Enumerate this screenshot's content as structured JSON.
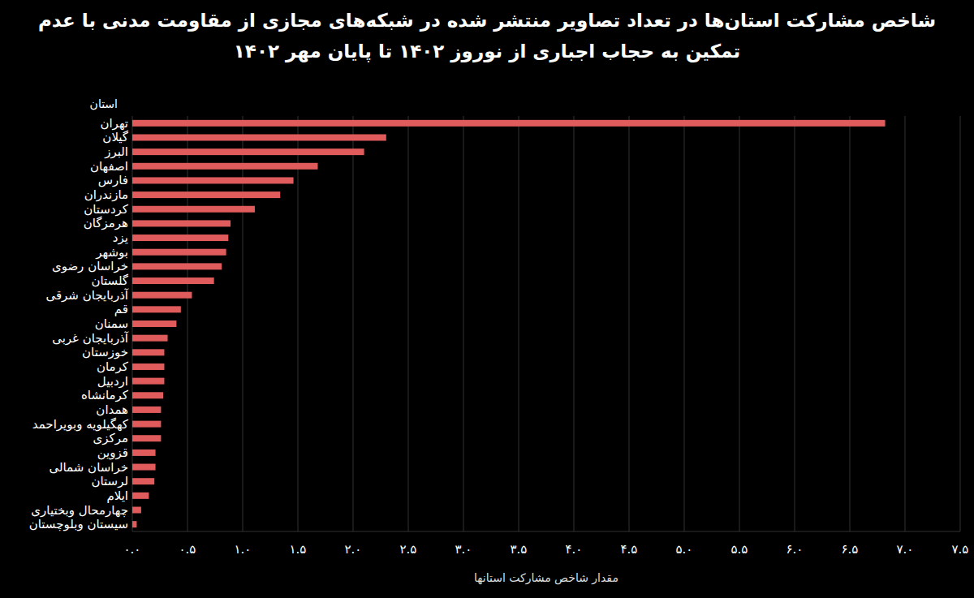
{
  "chart_data": {
    "type": "bar",
    "orientation": "horizontal",
    "title": "شاخص مشارکت استان‌ها در تعداد تصاویر منتشر شده در شبکه‌های مجازی از مقاومت مدنی با عدم تمکین به حجاب اجباری از نوروز ۱۴۰۲ تا پایان مهر ۱۴۰۲",
    "x_label": "مقدار شاخص مشارکت استانها",
    "y_label": "استان",
    "categories": [
      "تهران",
      "گیلان",
      "البرز",
      "اصفهان",
      "فارس",
      "مازندران",
      "کردستان",
      "هرمزگان",
      "یزد",
      "بوشهر",
      "خراسان رضوی",
      "گلستان",
      "آذربایجان شرقی",
      "قم",
      "سمنان",
      "آذربایجان غربی",
      "خوزستان",
      "کرمان",
      "اردبیل",
      "کرمانشاه",
      "همدان",
      "کهگیلویه وبویراحمد",
      "مرکزی",
      "قزوین",
      "خراسان شمالی",
      "لرستان",
      "ایلام",
      "چهارمحال وبختیاری",
      "سیستان وبلوچستان"
    ],
    "values": [
      6.82,
      2.3,
      2.1,
      1.68,
      1.46,
      1.34,
      1.11,
      0.89,
      0.87,
      0.85,
      0.81,
      0.74,
      0.54,
      0.44,
      0.4,
      0.32,
      0.29,
      0.29,
      0.29,
      0.28,
      0.26,
      0.26,
      0.26,
      0.21,
      0.21,
      0.2,
      0.15,
      0.08,
      0.04
    ],
    "color": "#e05c5c",
    "xlim": [
      0,
      7.5
    ],
    "xticks": [
      {
        "value": 0,
        "label": "۰.۰"
      },
      {
        "value": 0.5,
        "label": "۰.۵"
      },
      {
        "value": 1,
        "label": "۱.۰"
      },
      {
        "value": 1.5,
        "label": "۱.۵"
      },
      {
        "value": 2,
        "label": "۲.۰"
      },
      {
        "value": 2.5,
        "label": "۲.۵"
      },
      {
        "value": 3,
        "label": "۳.۰"
      },
      {
        "value": 3.5,
        "label": "۳.۵"
      },
      {
        "value": 4,
        "label": "۴.۰"
      },
      {
        "value": 4.5,
        "label": "۴.۵"
      },
      {
        "value": 5,
        "label": "۵.۰"
      },
      {
        "value": 5.5,
        "label": "۵.۵"
      },
      {
        "value": 6,
        "label": "۶.۰"
      },
      {
        "value": 6.5,
        "label": "۶.۵"
      },
      {
        "value": 7,
        "label": "۷.۰"
      },
      {
        "value": 7.5,
        "label": "۷.۵"
      }
    ],
    "grid": true
  }
}
